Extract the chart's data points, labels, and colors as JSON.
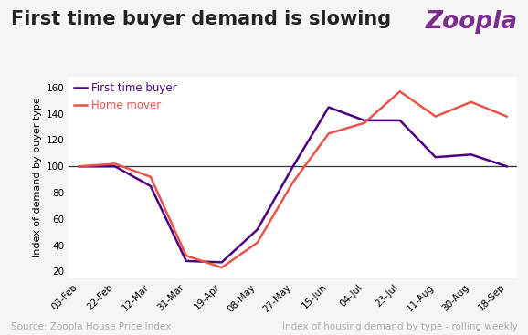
{
  "title": "First time buyer demand is slowing",
  "logo_text": "Zoopla",
  "ylabel": "Index of demand by buyer type",
  "source_left": "Source: Zoopla House Price Index",
  "source_right": "Index of housing demand by type - rolling weekly",
  "background_color": "#f5f5f5",
  "plot_background_color": "#ffffff",
  "x_labels": [
    "03-Feb",
    "22-Feb",
    "12-Mar",
    "31-Mar",
    "19-Apr",
    "08-May",
    "27-May",
    "15-Jun",
    "04-Jul",
    "23-Jul",
    "11-Aug",
    "30-Aug",
    "18-Sep"
  ],
  "yticks": [
    20,
    40,
    60,
    80,
    100,
    120,
    140,
    160
  ],
  "ylim": [
    15,
    168
  ],
  "first_time_buyer": [
    100,
    100,
    85,
    28,
    27,
    52,
    100,
    145,
    135,
    135,
    107,
    109,
    100
  ],
  "home_mover": [
    100,
    102,
    92,
    32,
    23,
    42,
    88,
    125,
    133,
    157,
    138,
    149,
    138
  ],
  "ftb_color": "#4B0082",
  "hm_color": "#E8534A",
  "line_width": 1.8,
  "legend_ftb": "First time buyer",
  "legend_hm": "Home mover",
  "title_fontsize": 15,
  "logo_fontsize": 19,
  "logo_color": "#7B2D8B",
  "ylabel_fontsize": 8,
  "tick_fontsize": 7.5,
  "footer_fontsize": 7.5,
  "footer_color": "#aaaaaa",
  "title_color": "#222222"
}
